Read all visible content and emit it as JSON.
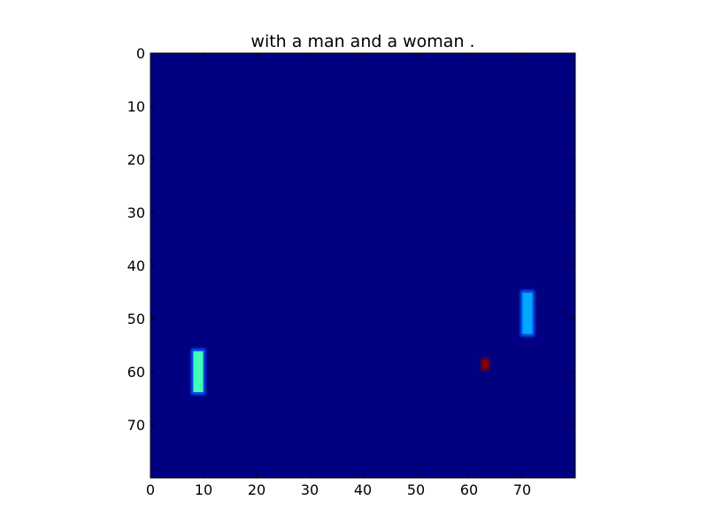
{
  "chart_data": {
    "type": "heatmap",
    "title": "with a man and a woman .",
    "xlabel": "",
    "ylabel": "",
    "xlim": [
      0,
      80
    ],
    "ylim": [
      80,
      0
    ],
    "x_ticks": [
      0,
      10,
      20,
      30,
      40,
      50,
      60,
      70
    ],
    "y_ticks": [
      0,
      10,
      20,
      30,
      40,
      50,
      60,
      70
    ],
    "background_color": "#000080",
    "grid": false,
    "colormap": "jet",
    "blobs": [
      {
        "x": 8,
        "y": 56,
        "w": 2,
        "h": 8,
        "color": "#3fffb7",
        "edge_color": "#0a5cff"
      },
      {
        "x": 70,
        "y": 45,
        "w": 2,
        "h": 8,
        "color": "#00a8ff",
        "edge_color": "#0060ff"
      },
      {
        "x": 62.6,
        "y": 57.8,
        "w": 0.9,
        "h": 1.6,
        "color": "#8b0000",
        "edge_color": "#800000"
      }
    ]
  }
}
